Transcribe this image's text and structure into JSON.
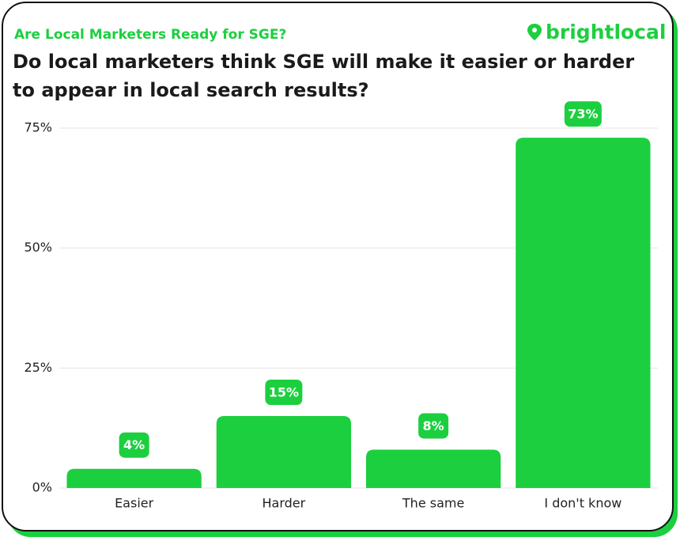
{
  "chart_data": {
    "type": "bar",
    "title": "Are Local Marketers Ready for SGE?",
    "subtitle": "Do local marketers think SGE will make it easier or harder to appear in local search results?",
    "brand": "brightlocal",
    "categories": [
      "Easier",
      "Harder",
      "The same",
      "I don't know"
    ],
    "values": [
      4,
      15,
      8,
      73
    ],
    "value_labels": [
      "4%",
      "15%",
      "8%",
      "73%"
    ],
    "color": "#1ccf3f",
    "ylim": [
      0,
      75
    ],
    "yticks": [
      {
        "value": 0,
        "label": "0%"
      },
      {
        "value": 25,
        "label": "25%"
      },
      {
        "value": 50,
        "label": "50%"
      },
      {
        "value": 75,
        "label": "75%"
      }
    ],
    "grid": true
  }
}
